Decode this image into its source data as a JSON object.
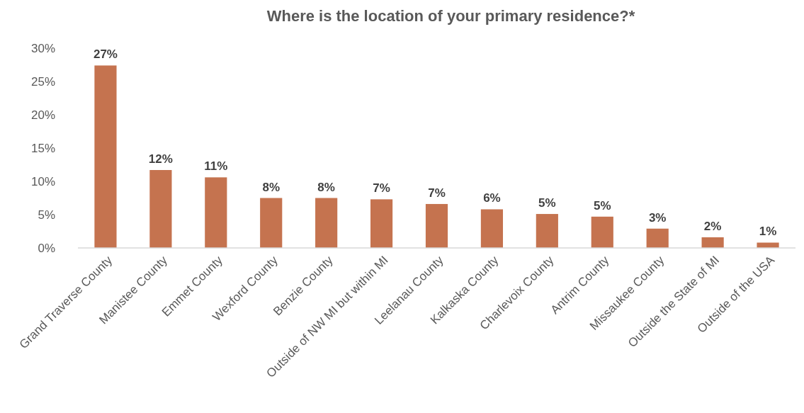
{
  "chart_data": {
    "type": "bar",
    "title": "Where is the location of your primary residence?*",
    "categories": [
      "Grand Traverse County",
      "Manistee County",
      "Emmet County",
      "Wexford County",
      "Benzie County",
      "Outside of NW MI but within MI",
      "Leelanau County",
      "Kalkaska County",
      "Charlevoix County",
      "Antrim County",
      "Missaukee County",
      "Outside the State of MI",
      "Outside of the USA"
    ],
    "values": [
      27.4,
      11.7,
      10.6,
      7.5,
      7.5,
      7.3,
      6.6,
      5.8,
      5.1,
      4.7,
      2.9,
      1.6,
      0.8
    ],
    "value_labels": [
      "27%",
      "12%",
      "11%",
      "8%",
      "8%",
      "7%",
      "7%",
      "6%",
      "5%",
      "5%",
      "3%",
      "2%",
      "1%"
    ],
    "color": "#c5734f",
    "ylim": [
      0,
      30
    ],
    "yticks": [
      {
        "value": 0,
        "label": "0%"
      },
      {
        "value": 5,
        "label": "5%"
      },
      {
        "value": 10,
        "label": "10%"
      },
      {
        "value": 15,
        "label": "15%"
      },
      {
        "value": 20,
        "label": "20%"
      },
      {
        "value": 25,
        "label": "25%"
      },
      {
        "value": 30,
        "label": "30%"
      }
    ],
    "grid": false
  }
}
